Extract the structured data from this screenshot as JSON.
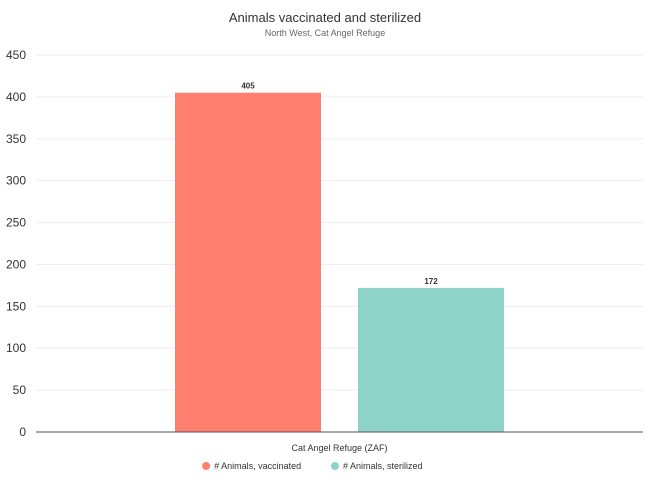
{
  "chart_data": {
    "type": "bar",
    "title": "Animals vaccinated and sterilized",
    "subtitle": "North West, Cat Angel Refuge",
    "categories": [
      "Cat Angel Refuge (ZAF)"
    ],
    "series": [
      {
        "name": "# Animals, vaccinated",
        "values": [
          405
        ],
        "color": "#FF7F6E"
      },
      {
        "name": "# Animals, sterilized",
        "values": [
          172
        ],
        "color": "#8DD3C7"
      }
    ],
    "ylim": [
      0,
      450
    ],
    "yticks": [
      0,
      50,
      100,
      150,
      200,
      250,
      300,
      350,
      400,
      450
    ],
    "grid": true,
    "legend": "bottom-center",
    "data_labels": true
  }
}
